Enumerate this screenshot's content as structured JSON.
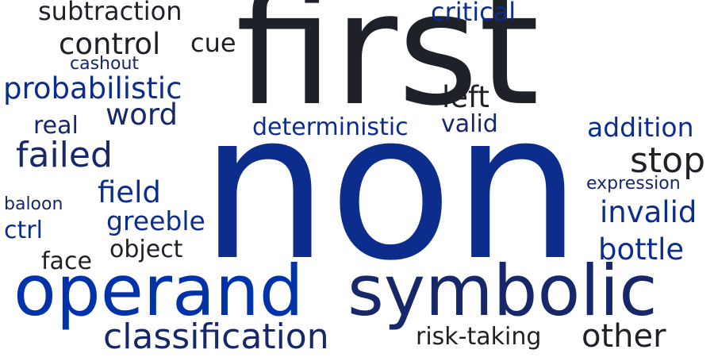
{
  "colors": {
    "background": "#ffffff",
    "dark": "#1f2129",
    "royal": "#0d2d8c",
    "navy": "#16276a",
    "bright": "#0033aa"
  },
  "words": [
    {
      "id": "non",
      "text": "non",
      "color": "#0d2d8c"
    },
    {
      "id": "first",
      "text": "first",
      "color": "#1f2129"
    },
    {
      "id": "operand",
      "text": "operand",
      "color": "#0033aa"
    },
    {
      "id": "symbolic",
      "text": "symbolic",
      "color": "#16276a"
    },
    {
      "id": "classification",
      "text": "classification",
      "color": "#16276a"
    },
    {
      "id": "subtraction",
      "text": "subtraction",
      "color": "#1f2129"
    },
    {
      "id": "control",
      "text": "control",
      "color": "#1f2129"
    },
    {
      "id": "cue",
      "text": "cue",
      "color": "#1f2129"
    },
    {
      "id": "cashout",
      "text": "cashout",
      "color": "#16276a"
    },
    {
      "id": "probabilistic",
      "text": "probabilistic",
      "color": "#0d2d8c"
    },
    {
      "id": "word",
      "text": "word",
      "color": "#16276a"
    },
    {
      "id": "real",
      "text": "real",
      "color": "#16276a"
    },
    {
      "id": "failed",
      "text": "failed",
      "color": "#16276a"
    },
    {
      "id": "field",
      "text": "field",
      "color": "#0d2d8c"
    },
    {
      "id": "baloon",
      "text": "baloon",
      "color": "#16276a"
    },
    {
      "id": "greeble",
      "text": "greeble",
      "color": "#0d2d8c"
    },
    {
      "id": "ctrl",
      "text": "ctrl",
      "color": "#0d2d8c"
    },
    {
      "id": "object",
      "text": "object",
      "color": "#1f2129"
    },
    {
      "id": "face",
      "text": "face",
      "color": "#1f2129"
    },
    {
      "id": "critical",
      "text": "critical",
      "color": "#0d2d8c"
    },
    {
      "id": "left",
      "text": "left",
      "color": "#1f2129"
    },
    {
      "id": "valid",
      "text": "valid",
      "color": "#16276a"
    },
    {
      "id": "deterministic",
      "text": "deterministic",
      "color": "#0d2d8c"
    },
    {
      "id": "addition",
      "text": "addition",
      "color": "#0d2d8c"
    },
    {
      "id": "stop",
      "text": "stop",
      "color": "#1f2129"
    },
    {
      "id": "expression",
      "text": "expression",
      "color": "#16276a"
    },
    {
      "id": "invalid",
      "text": "invalid",
      "color": "#0d2d8c"
    },
    {
      "id": "bottle",
      "text": "bottle",
      "color": "#0d2d8c"
    },
    {
      "id": "risk-taking",
      "text": "risk-taking",
      "color": "#1f2129"
    },
    {
      "id": "other",
      "text": "other",
      "color": "#1f2129"
    }
  ]
}
